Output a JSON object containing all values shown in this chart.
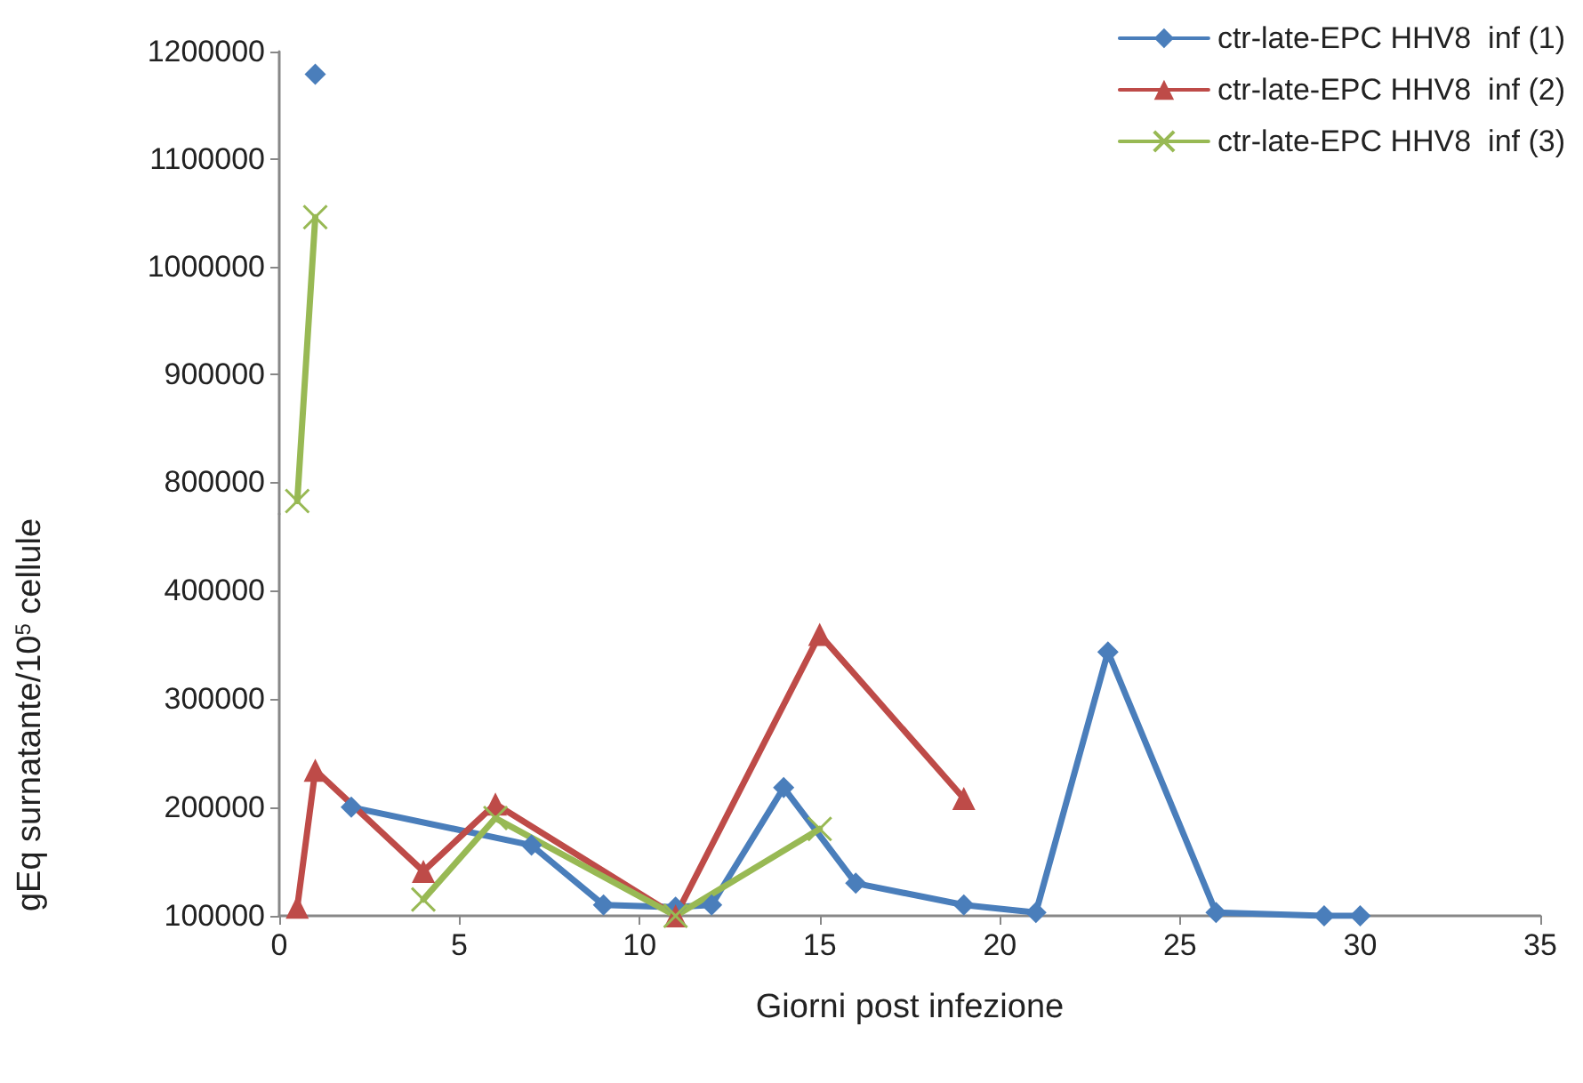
{
  "chart_data": [
    {
      "type": "line",
      "xlim": [
        0,
        35
      ],
      "ylim": [
        770000,
        1200000
      ],
      "yticks": [
        800000,
        900000,
        1000000,
        1100000,
        1200000
      ],
      "tick_labels": "y",
      "grid": false,
      "line_style": "solid",
      "series": [
        {
          "color": "#4a7ebb",
          "marker": "diamond",
          "x": [
            1
          ],
          "values": [
            1179000
          ]
        },
        {
          "color": "#98b954",
          "marker": "cross",
          "x": [
            0.5,
            1
          ],
          "values": [
            782000,
            1046000
          ]
        }
      ]
    },
    {
      "type": "line",
      "xlabel": "Giorni post infezione",
      "ylabel": "gEq surnatante/10$^{5}$ cellule",
      "xlim": [
        0,
        35
      ],
      "xticks": [
        0,
        5,
        10,
        15,
        20,
        25,
        30,
        35
      ],
      "ylim": [
        100000,
        470000
      ],
      "yticks": [
        100000,
        200000,
        300000,
        400000
      ],
      "grid": false,
      "legend": "top right",
      "line_style": "solid",
      "series": [
        {
          "name": "ctr-late-EPC HHV8  inf (1)",
          "color": "#4a7ebb",
          "marker": "diamond",
          "x": [
            2,
            7,
            9,
            11,
            12,
            14,
            16,
            19,
            21,
            23,
            26,
            29,
            30
          ],
          "values": [
            200000,
            165000,
            110000,
            108000,
            110000,
            218000,
            130000,
            110000,
            103000,
            343000,
            103000,
            100000,
            100000
          ]
        },
        {
          "name": "ctr-late-EPC HHV8  inf (2)",
          "color": "#be4b48",
          "marker": "triangle",
          "x": [
            0.5,
            1,
            4,
            6,
            11,
            15,
            19
          ],
          "values": [
            108000,
            234000,
            141000,
            203000,
            100000,
            359000,
            208000
          ]
        },
        {
          "name": "ctr-late-EPC HHV8  inf (3)",
          "color": "#98b954",
          "marker": "cross",
          "x": [
            4,
            6,
            11,
            15
          ],
          "values": [
            115000,
            190000,
            100000,
            180000
          ]
        }
      ]
    }
  ]
}
